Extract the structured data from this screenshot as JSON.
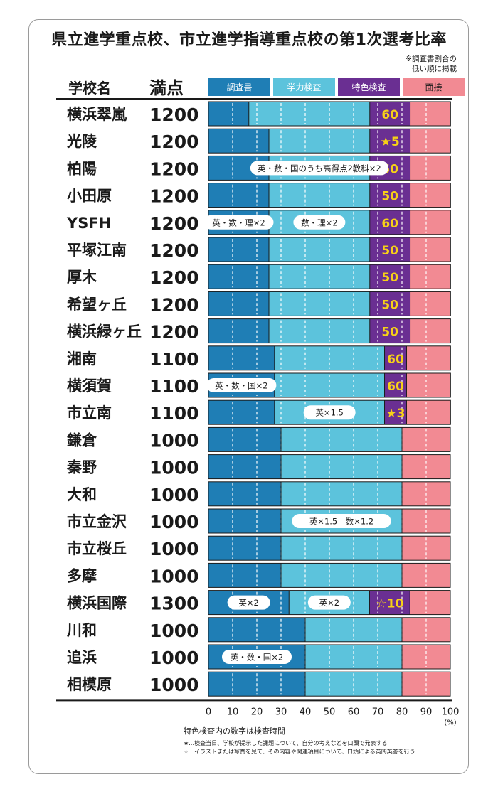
{
  "title": "県立進学重点校、市立進学指導重点校の第1次選考比率",
  "note_top": [
    "※調査書割合の",
    "低い順に掲載"
  ],
  "headers": {
    "school": "学校名",
    "score": "満点"
  },
  "colors": {
    "chosasho": "#1f7eb5",
    "gakuryoku": "#5cc3dc",
    "tokushoku": "#6a2f92",
    "mensetsu": "#f28a93",
    "label_yellow": "#f7d117"
  },
  "footnote": "特色検査内の数字は検査時間",
  "footnote_star": "★…検査当日、学校が提示した課題について、自分の考えなどを口頭で発表する",
  "footnote_hollow_star": "☆…イラストまたは写真を見て、その内容や関連項目について、口頭による英問英答を行う",
  "chart_data": {
    "type": "bar",
    "stacked": true,
    "orientation": "horizontal",
    "unit": "(%)",
    "xlim": [
      0,
      100
    ],
    "xticks": [
      0,
      10,
      20,
      30,
      40,
      50,
      60,
      70,
      80,
      90,
      100
    ],
    "gridlines": "dashed",
    "legend": [
      "調査書",
      "学力検査",
      "特色検査",
      "面接"
    ],
    "schools": [
      {
        "name": "横浜翠嵐",
        "score": "1200",
        "chosasho": 16.7,
        "gakuryoku": 50,
        "tokushoku": 16.7,
        "mensetsu": 16.7,
        "tokushoku_label": "60",
        "note": ""
      },
      {
        "name": "光陵",
        "score": "1200",
        "chosasho": 25,
        "gakuryoku": 41.7,
        "tokushoku": 16.7,
        "mensetsu": 16.7,
        "tokushoku_label": "★5",
        "note": ""
      },
      {
        "name": "柏陽",
        "score": "1200",
        "chosasho": 25,
        "gakuryoku": 41.7,
        "tokushoku": 16.7,
        "mensetsu": 16.7,
        "tokushoku_label": "50",
        "note": "英・数・国のうち高得点2教科×2"
      },
      {
        "name": "小田原",
        "score": "1200",
        "chosasho": 25,
        "gakuryoku": 41.7,
        "tokushoku": 16.7,
        "mensetsu": 16.7,
        "tokushoku_label": "50",
        "note": ""
      },
      {
        "name": "YSFH",
        "score": "1200",
        "chosasho": 25,
        "gakuryoku": 41.7,
        "tokushoku": 16.7,
        "mensetsu": 16.7,
        "tokushoku_label": "60",
        "note_left": "英・数・理×2",
        "note": "数・理×2"
      },
      {
        "name": "平塚江南",
        "score": "1200",
        "chosasho": 25,
        "gakuryoku": 41.7,
        "tokushoku": 16.7,
        "mensetsu": 16.7,
        "tokushoku_label": "50",
        "note": ""
      },
      {
        "name": "厚木",
        "score": "1200",
        "chosasho": 25,
        "gakuryoku": 41.7,
        "tokushoku": 16.7,
        "mensetsu": 16.7,
        "tokushoku_label": "50",
        "note": ""
      },
      {
        "name": "希望ヶ丘",
        "score": "1200",
        "chosasho": 25,
        "gakuryoku": 41.7,
        "tokushoku": 16.7,
        "mensetsu": 16.7,
        "tokushoku_label": "50",
        "note": ""
      },
      {
        "name": "横浜緑ヶ丘",
        "score": "1200",
        "chosasho": 25,
        "gakuryoku": 41.7,
        "tokushoku": 16.7,
        "mensetsu": 16.7,
        "tokushoku_label": "50",
        "note": ""
      },
      {
        "name": "湘南",
        "score": "1100",
        "chosasho": 27.3,
        "gakuryoku": 45.5,
        "tokushoku": 9.1,
        "mensetsu": 18.2,
        "tokushoku_label": "60",
        "note": ""
      },
      {
        "name": "横須賀",
        "score": "1100",
        "chosasho": 27.3,
        "gakuryoku": 45.5,
        "tokushoku": 9.1,
        "mensetsu": 18.2,
        "tokushoku_label": "60",
        "note_left": "英・数・国×2",
        "note": ""
      },
      {
        "name": "市立南",
        "score": "1100",
        "chosasho": 27.3,
        "gakuryoku": 45.5,
        "tokushoku": 9.1,
        "mensetsu": 18.2,
        "tokushoku_label": "★3",
        "note": "英×1.5"
      },
      {
        "name": "鎌倉",
        "score": "1000",
        "chosasho": 30,
        "gakuryoku": 50,
        "tokushoku": 0,
        "mensetsu": 20,
        "tokushoku_label": "",
        "note": ""
      },
      {
        "name": "秦野",
        "score": "1000",
        "chosasho": 30,
        "gakuryoku": 50,
        "tokushoku": 0,
        "mensetsu": 20,
        "tokushoku_label": "",
        "note": ""
      },
      {
        "name": "大和",
        "score": "1000",
        "chosasho": 30,
        "gakuryoku": 50,
        "tokushoku": 0,
        "mensetsu": 20,
        "tokushoku_label": "",
        "note": ""
      },
      {
        "name": "市立金沢",
        "score": "1000",
        "chosasho": 30,
        "gakuryoku": 50,
        "tokushoku": 0,
        "mensetsu": 20,
        "tokushoku_label": "",
        "note": "英×1.5　数×1.2"
      },
      {
        "name": "市立桜丘",
        "score": "1000",
        "chosasho": 30,
        "gakuryoku": 50,
        "tokushoku": 0,
        "mensetsu": 20,
        "tokushoku_label": "",
        "note": ""
      },
      {
        "name": "多摩",
        "score": "1000",
        "chosasho": 30,
        "gakuryoku": 50,
        "tokushoku": 0,
        "mensetsu": 20,
        "tokushoku_label": "",
        "note": ""
      },
      {
        "name": "横浜国際",
        "score": "1300",
        "chosasho": 33.3,
        "gakuryoku": 33.3,
        "tokushoku": 16.7,
        "mensetsu": 16.7,
        "tokushoku_label": "☆10",
        "note_left": "英×2",
        "note": "英×2"
      },
      {
        "name": "川和",
        "score": "1000",
        "chosasho": 40,
        "gakuryoku": 40,
        "tokushoku": 0,
        "mensetsu": 20,
        "tokushoku_label": "",
        "note": ""
      },
      {
        "name": "追浜",
        "score": "1000",
        "chosasho": 40,
        "gakuryoku": 40,
        "tokushoku": 0,
        "mensetsu": 20,
        "tokushoku_label": "",
        "note_left": "英・数・国×2",
        "note": ""
      },
      {
        "name": "相模原",
        "score": "1000",
        "chosasho": 40,
        "gakuryoku": 40,
        "tokushoku": 0,
        "mensetsu": 20,
        "tokushoku_label": "",
        "note": ""
      }
    ]
  }
}
